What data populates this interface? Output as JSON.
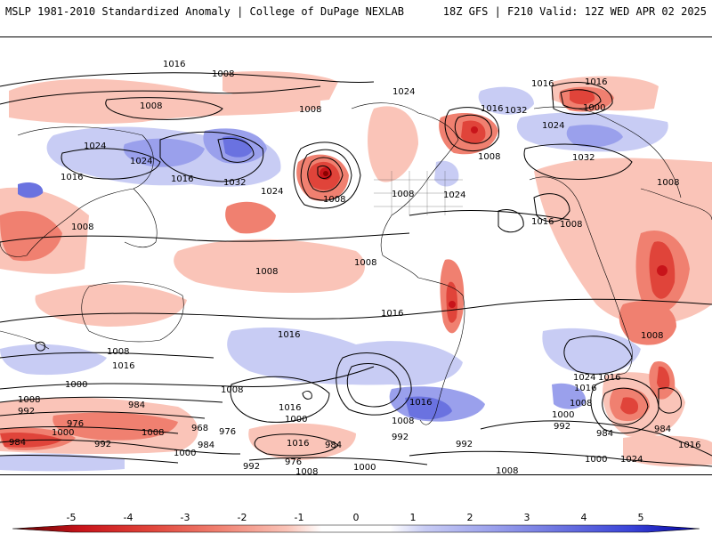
{
  "header": {
    "title": "MSLP 1981-2010 Standardized Anomaly | College of DuPage NEXLAB",
    "run_info": "18Z GFS | F210 Valid: 12Z WED APR 02 2025"
  },
  "colorbar": {
    "ticks": [
      "-5",
      "-4",
      "-3",
      "-2",
      "-1",
      "0",
      "1",
      "2",
      "3",
      "4",
      "5"
    ],
    "colors": [
      "#8b0000",
      "#c8141a",
      "#e0443a",
      "#f08070",
      "#fac4b8",
      "#ffffff",
      "#c8ccf4",
      "#9aa0ec",
      "#6a72e0",
      "#3a44d8",
      "#0a14c8"
    ]
  },
  "isobar_labels": [
    "1016",
    "1008",
    "1024",
    "1016",
    "1008",
    "1024",
    "1032",
    "1000",
    "1016",
    "1008",
    "1024",
    "1016",
    "1008",
    "1032",
    "1024",
    "1016",
    "1008",
    "1008",
    "1008",
    "1016",
    "1024",
    "1032",
    "1008",
    "1024",
    "1016",
    "1008",
    "1008",
    "1008",
    "1008",
    "1016",
    "1008",
    "1016",
    "1016",
    "1016",
    "1008",
    "1016",
    "1008",
    "1000",
    "992",
    "984",
    "976",
    "984",
    "992",
    "1000",
    "1008",
    "1016",
    "1000",
    "1008",
    "992",
    "992",
    "1024",
    "1016",
    "1008",
    "1000",
    "992",
    "984",
    "1016",
    "984",
    "976",
    "968",
    "984",
    "1000",
    "992",
    "976",
    "1008",
    "1000",
    "1008",
    "1024",
    "1016",
    "1000",
    "984"
  ]
}
